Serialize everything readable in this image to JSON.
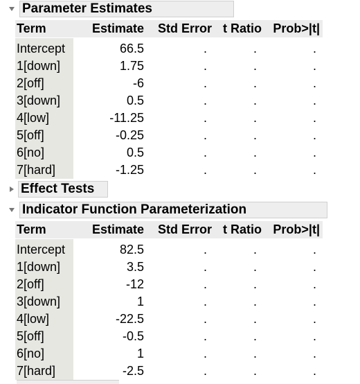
{
  "sections": [
    {
      "title": "Parameter Estimates",
      "expanded": true
    },
    {
      "title": "Effect Tests",
      "expanded": false
    },
    {
      "title": "Indicator Function Parameterization",
      "expanded": true
    }
  ],
  "columns": [
    "Term",
    "Estimate",
    "Std Error",
    "t Ratio",
    "Prob>|t|"
  ],
  "parameter_estimates": [
    {
      "term": "Intercept",
      "estimate": "66.5",
      "std_error": ".",
      "t_ratio": ".",
      "prob": "."
    },
    {
      "term": "1[down]",
      "estimate": "1.75",
      "std_error": ".",
      "t_ratio": ".",
      "prob": "."
    },
    {
      "term": "2[off]",
      "estimate": "-6",
      "std_error": ".",
      "t_ratio": ".",
      "prob": "."
    },
    {
      "term": "3[down]",
      "estimate": "0.5",
      "std_error": ".",
      "t_ratio": ".",
      "prob": "."
    },
    {
      "term": "4[low]",
      "estimate": "-11.25",
      "std_error": ".",
      "t_ratio": ".",
      "prob": "."
    },
    {
      "term": "5[off]",
      "estimate": "-0.25",
      "std_error": ".",
      "t_ratio": ".",
      "prob": "."
    },
    {
      "term": "6[no]",
      "estimate": "0.5",
      "std_error": ".",
      "t_ratio": ".",
      "prob": "."
    },
    {
      "term": "7[hard]",
      "estimate": "-1.25",
      "std_error": ".",
      "t_ratio": ".",
      "prob": "."
    }
  ],
  "indicator_parameterization": [
    {
      "term": "Intercept",
      "estimate": "82.5",
      "std_error": ".",
      "t_ratio": ".",
      "prob": "."
    },
    {
      "term": "1[down]",
      "estimate": "3.5",
      "std_error": ".",
      "t_ratio": ".",
      "prob": "."
    },
    {
      "term": "2[off]",
      "estimate": "-12",
      "std_error": ".",
      "t_ratio": ".",
      "prob": "."
    },
    {
      "term": "3[down]",
      "estimate": "1",
      "std_error": ".",
      "t_ratio": ".",
      "prob": "."
    },
    {
      "term": "4[low]",
      "estimate": "-22.5",
      "std_error": ".",
      "t_ratio": ".",
      "prob": "."
    },
    {
      "term": "5[off]",
      "estimate": "-0.5",
      "std_error": ".",
      "t_ratio": ".",
      "prob": "."
    },
    {
      "term": "6[no]",
      "estimate": "1",
      "std_error": ".",
      "t_ratio": ".",
      "prob": "."
    },
    {
      "term": "7[hard]",
      "estimate": "-2.5",
      "std_error": ".",
      "t_ratio": ".",
      "prob": "."
    }
  ],
  "colors": {
    "header_bg": "#eeeeee",
    "term_bg": "#e7e7e2",
    "disclosure": "#777777"
  }
}
